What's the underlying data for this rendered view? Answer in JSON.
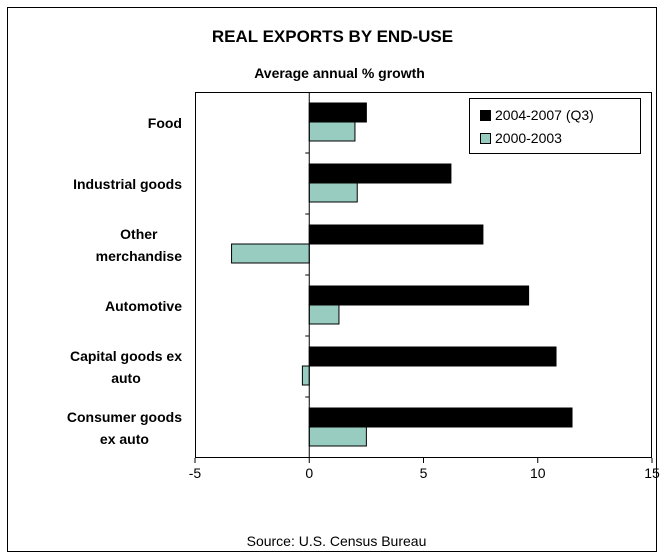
{
  "colors": {
    "series_dark": "#000000",
    "series_light": "#99ccc0"
  },
  "chart_data": {
    "type": "bar",
    "orientation": "horizontal",
    "title": "REAL EXPORTS BY END-USE",
    "subtitle": "Average annual % growth",
    "categories": [
      [
        "Food"
      ],
      [
        "Industrial goods"
      ],
      [
        "Other",
        "merchandise"
      ],
      [
        "Automotive"
      ],
      [
        "Capital goods ex",
        "auto"
      ],
      [
        "Consumer goods",
        "ex auto"
      ]
    ],
    "series": [
      {
        "name": "2004-2007 (Q3)",
        "color": "#000000",
        "values": [
          2.5,
          6.2,
          7.6,
          9.6,
          10.8,
          11.5
        ]
      },
      {
        "name": "2000-2003",
        "color": "#99ccc0",
        "values": [
          2.0,
          2.1,
          -3.4,
          1.3,
          -0.3,
          2.5
        ]
      }
    ],
    "xlim": [
      -5,
      15
    ],
    "xticks": [
      "-5",
      "0",
      "5",
      "10",
      "15"
    ],
    "grid": false,
    "legend_position": "top-right",
    "source": "Source: U.S. Census Bureau"
  }
}
